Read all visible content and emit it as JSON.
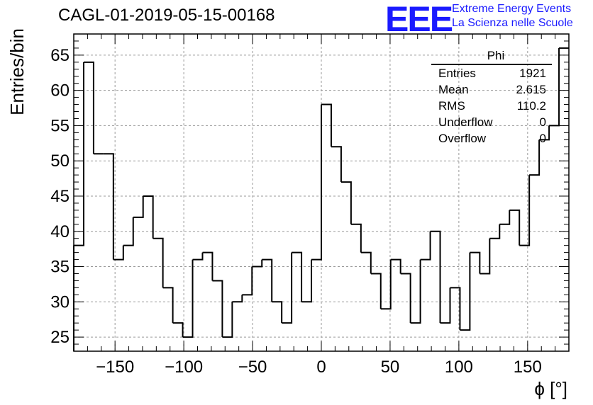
{
  "header": {
    "title": "CAGL-01-2019-05-15-00168",
    "logo_text": "EEE",
    "logo_line1": "Extreme Energy Events",
    "logo_line2": "La Scienza nelle Scuole",
    "logo_color": "#1a1aff"
  },
  "stats": {
    "title": "Phi",
    "rows": [
      {
        "label": "Entries",
        "value": "1921"
      },
      {
        "label": "Mean",
        "value": "2.615"
      },
      {
        "label": "RMS",
        "value": "110.2"
      },
      {
        "label": "Underflow",
        "value": "0"
      },
      {
        "label": "Overflow",
        "value": "0"
      }
    ]
  },
  "chart_data": {
    "type": "histogram",
    "title": "CAGL-01-2019-05-15-00168",
    "xlabel": "ϕ [°]",
    "ylabel": "Entries/bin",
    "xlim": [
      -180,
      180
    ],
    "ylim": [
      23,
      68
    ],
    "bin_width": 7.2,
    "xticks": [
      -150,
      -100,
      -50,
      0,
      50,
      100,
      150
    ],
    "yticks": [
      25,
      30,
      35,
      40,
      45,
      50,
      55,
      60,
      65
    ],
    "grid": true,
    "values": [
      38,
      64,
      51,
      51,
      36,
      38,
      42,
      45,
      39,
      32,
      27,
      25,
      36,
      37,
      33,
      25,
      30,
      31,
      35,
      36,
      30,
      27,
      37,
      30,
      36,
      58,
      52,
      47,
      41,
      37,
      34,
      29,
      36,
      34,
      27,
      36,
      40,
      27,
      32,
      26,
      37,
      34,
      39,
      41,
      43,
      38,
      48,
      53,
      55,
      66
    ]
  }
}
